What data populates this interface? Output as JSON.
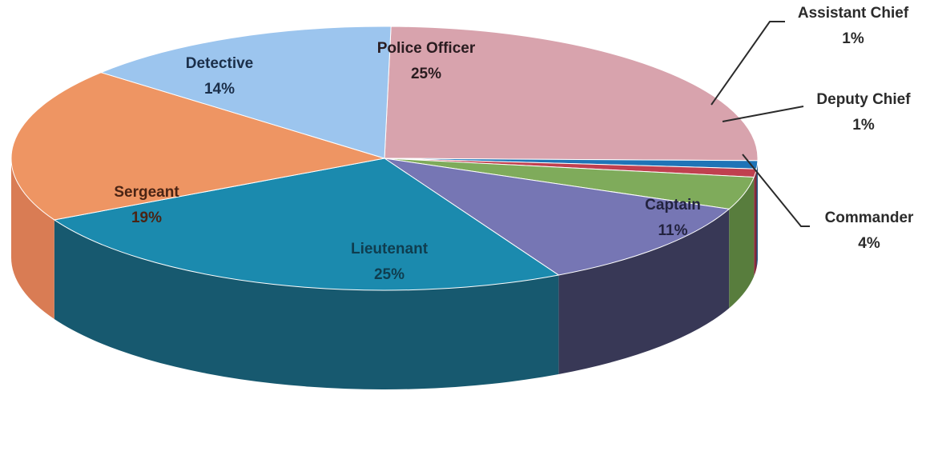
{
  "chart_data": {
    "type": "pie",
    "style": "3d",
    "title": "",
    "slices": [
      {
        "label": "Police Officer",
        "value": 25,
        "value_label": "25%",
        "color": "#d8a3ad",
        "side_color": "#a87780",
        "label_color": "#2a1c20",
        "label_placement": "inside"
      },
      {
        "label": "Assistant Chief",
        "value": 1,
        "value_label": "1%",
        "color": "#1f74b7",
        "side_color": "#144f7f",
        "label_color": "#222222",
        "label_placement": "outside"
      },
      {
        "label": "Deputy Chief",
        "value": 1,
        "value_label": "1%",
        "color": "#c0404f",
        "side_color": "#86293a",
        "label_color": "#222222",
        "label_placement": "outside"
      },
      {
        "label": "Commander",
        "value": 4,
        "value_label": "4%",
        "color": "#7fab5b",
        "side_color": "#587d3d",
        "label_color": "#222222",
        "label_placement": "outside"
      },
      {
        "label": "Captain",
        "value": 11,
        "value_label": "11%",
        "color": "#7676b4",
        "side_color": "#383856",
        "label_color": "#23233f",
        "label_placement": "inside"
      },
      {
        "label": "Lieutenant",
        "value": 25,
        "value_label": "25%",
        "color": "#1b8aae",
        "side_color": "#17596f",
        "label_color": "#0f3d4f",
        "label_placement": "inside"
      },
      {
        "label": "Sergeant",
        "value": 19,
        "value_label": "19%",
        "color": "#ee9563",
        "side_color": "#d97c54",
        "label_color": "#4a2414",
        "label_placement": "inside"
      },
      {
        "label": "Detective",
        "value": 14,
        "value_label": "14%",
        "color": "#9cc5ee",
        "side_color": "#6f93b8",
        "label_color": "#1b2f4a",
        "label_placement": "inside"
      }
    ]
  }
}
